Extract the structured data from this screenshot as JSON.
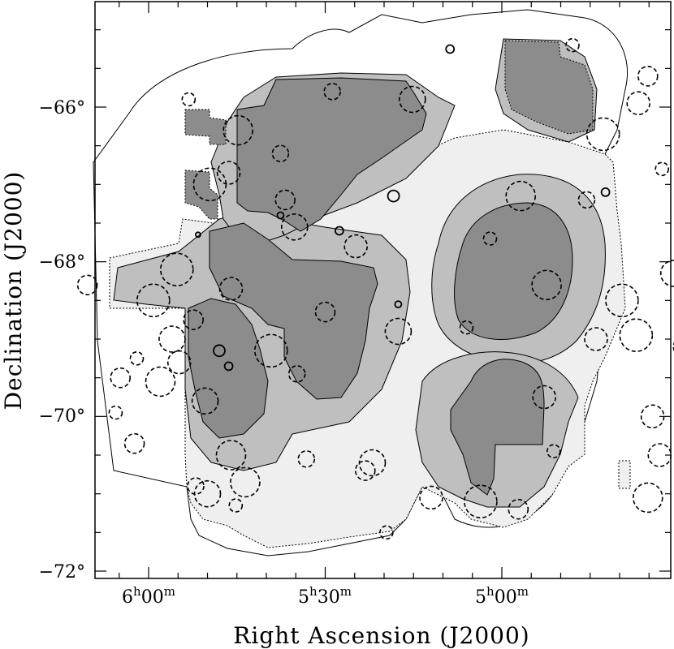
{
  "chart_data": {
    "type": "scatter",
    "title": "",
    "xlabel": "Right Ascension (J2000)",
    "ylabel": "Declination (J2000)",
    "x_ticks": [
      {
        "h": "6",
        "m": "00"
      },
      {
        "h": "5",
        "m": "30"
      },
      {
        "h": "5",
        "m": "00"
      }
    ],
    "y_ticks": [
      "−66°",
      "−68°",
      "−70°",
      "−72°"
    ],
    "x_range_deg": [
      97.5,
      60.5
    ],
    "y_range_deg": [
      -64.8,
      -72.1
    ],
    "x_reversed": true,
    "grid": false,
    "colors": {
      "coverage_light": "#efefef",
      "coverage_medium": "#bfbfbf",
      "coverage_dark": "#8c8c8c",
      "outline": "#000000"
    },
    "series": [
      {
        "marker": "dashed-circle",
        "points": [
          [
            72.0,
            -65.2
          ],
          [
            65.6,
            -65.4
          ],
          [
            62.4,
            -65.3
          ],
          [
            68.8,
            -65.6
          ],
          [
            60.6,
            -65.7
          ],
          [
            82.2,
            -65.8
          ],
          [
            78.8,
            -65.9
          ],
          [
            88.3,
            -65.9
          ],
          [
            69.2,
            -65.95
          ],
          [
            70.7,
            -66.35
          ],
          [
            66.1,
            -66.1
          ],
          [
            86.2,
            -66.3
          ],
          [
            84.4,
            -66.6
          ],
          [
            61.3,
            -66.3
          ],
          [
            68.2,
            -66.8
          ],
          [
            86.6,
            -66.85
          ],
          [
            87.4,
            -67.0
          ],
          [
            84.2,
            -67.2
          ],
          [
            74.2,
            -67.15
          ],
          [
            71.4,
            -67.2
          ],
          [
            83.8,
            -67.55
          ],
          [
            75.5,
            -67.7
          ],
          [
            81.2,
            -67.8
          ],
          [
            88.8,
            -68.1
          ],
          [
            92.6,
            -68.3
          ],
          [
            73.1,
            -68.3
          ],
          [
            64.3,
            -68.2
          ],
          [
            67.7,
            -68.15
          ],
          [
            62.7,
            -68.25
          ],
          [
            86.5,
            -68.35
          ],
          [
            89.8,
            -68.5
          ],
          [
            82.5,
            -68.65
          ],
          [
            61.8,
            -68.7
          ],
          [
            58.9,
            -68.9
          ],
          [
            79.4,
            -68.9
          ],
          [
            76.5,
            -68.85
          ],
          [
            71.0,
            -69.0
          ],
          [
            69.3,
            -68.95
          ],
          [
            67.3,
            -69.1
          ],
          [
            63.2,
            -69.2
          ],
          [
            61.3,
            -69.15
          ],
          [
            89.0,
            -69.0
          ],
          [
            90.5,
            -69.25
          ],
          [
            88.7,
            -69.3
          ],
          [
            84.8,
            -69.15
          ],
          [
            91.2,
            -69.5
          ],
          [
            89.5,
            -69.55
          ],
          [
            83.7,
            -69.45
          ],
          [
            87.6,
            -69.8
          ],
          [
            91.4,
            -69.95
          ],
          [
            68.6,
            -70.0
          ],
          [
            60.8,
            -70.4
          ],
          [
            90.6,
            -70.35
          ],
          [
            86.5,
            -70.5
          ],
          [
            83.3,
            -70.55
          ],
          [
            80.5,
            -70.6
          ],
          [
            72.8,
            -70.45
          ],
          [
            68.3,
            -70.5
          ],
          [
            64.0,
            -70.5
          ],
          [
            80.8,
            -70.7
          ],
          [
            85.9,
            -70.85
          ],
          [
            88.0,
            -70.9
          ],
          [
            87.5,
            -71.0
          ],
          [
            86.3,
            -71.15
          ],
          [
            78.0,
            -71.05
          ],
          [
            75.9,
            -71.1
          ],
          [
            74.3,
            -71.2
          ],
          [
            68.8,
            -71.05
          ],
          [
            66.2,
            -71.0
          ],
          [
            62.8,
            -70.8
          ],
          [
            79.9,
            -71.5
          ],
          [
            73.2,
            -69.75
          ],
          [
            69.9,
            -68.5
          ],
          [
            88.1,
            -68.75
          ],
          [
            61.5,
            -69.0
          ]
        ]
      },
      {
        "marker": "solid-circle",
        "points": [
          [
            77.2,
            -65.25
          ],
          [
            60.9,
            -66.3
          ],
          [
            84.4,
            -67.4
          ],
          [
            79.6,
            -67.15
          ],
          [
            81.9,
            -67.6
          ],
          [
            87.9,
            -67.65
          ],
          [
            70.6,
            -67.1
          ],
          [
            66.7,
            -68.5
          ],
          [
            79.4,
            -68.55
          ],
          [
            87.0,
            -69.15
          ],
          [
            86.6,
            -69.35
          ],
          [
            62.5,
            -69.95
          ],
          [
            59.7,
            -67.05
          ]
        ]
      }
    ]
  }
}
